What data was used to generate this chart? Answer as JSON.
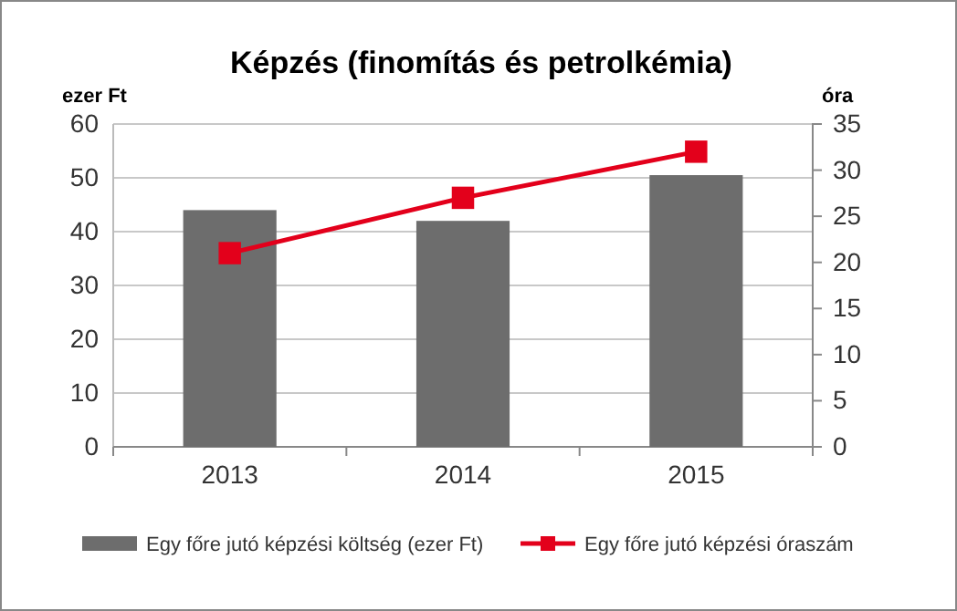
{
  "chart_data": {
    "type": "bar",
    "title": "Képzés (finomítás és petrolkémia)",
    "ylabel": "ezer Ft",
    "y2label": "óra",
    "categories": [
      "2013",
      "2014",
      "2015"
    ],
    "series": [
      {
        "name": "Egy főre jutó képzési költség (ezer Ft)",
        "color": "#6d6d6d",
        "values": [
          44,
          42,
          50.5
        ]
      },
      {
        "name": "Egy főre jutó képzési óraszám",
        "type": "line",
        "axis": "y2",
        "color": "#e3001b",
        "values": [
          21,
          27,
          32
        ],
        "marker": "square"
      }
    ],
    "ylim": [
      0,
      60
    ],
    "yticks": [
      0,
      10,
      20,
      30,
      40,
      50,
      60
    ],
    "y2lim": [
      0,
      35
    ],
    "y2ticks": [
      0,
      5,
      10,
      15,
      20,
      25,
      30,
      35
    ],
    "grid": "y",
    "legend": "bottom"
  }
}
